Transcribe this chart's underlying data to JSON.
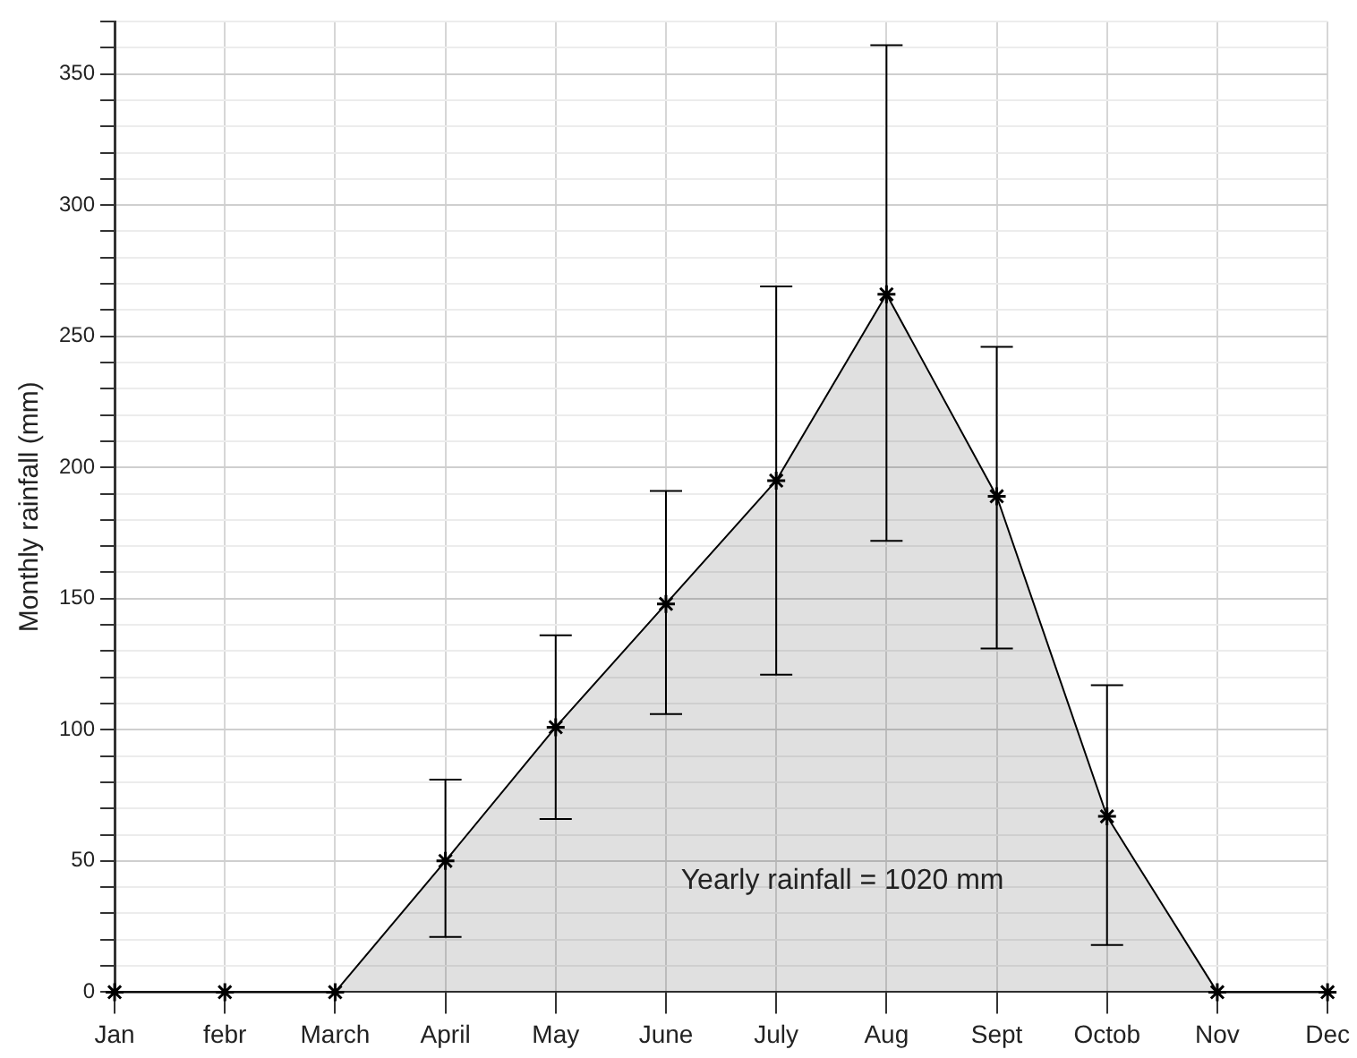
{
  "chart_data": {
    "type": "area",
    "ylabel": "Monthly rainfall (mm)",
    "categories": [
      "Jan",
      "febr",
      "March",
      "April",
      "May",
      "June",
      "July",
      "Aug",
      "Sept",
      "Octob",
      "Nov",
      "Dec"
    ],
    "series": [
      {
        "color": "#000000",
        "values": [
          0,
          0,
          0,
          50,
          101,
          148,
          195,
          266,
          189,
          67,
          0,
          0
        ],
        "errors": [
          null,
          null,
          null,
          [
            21,
            81
          ],
          [
            66,
            136
          ],
          [
            106,
            191
          ],
          [
            121,
            269
          ],
          [
            172,
            361
          ],
          [
            131,
            246
          ],
          [
            18,
            117
          ],
          null,
          null
        ]
      }
    ],
    "ylim": [
      0,
      370
    ],
    "yticks": [
      0,
      {
        "value": 10,
        "label": null
      },
      {
        "value": 20,
        "label": null
      },
      {
        "value": 30,
        "label": null
      },
      {
        "value": 40,
        "label": null
      },
      50,
      {
        "value": 60,
        "label": null
      },
      {
        "value": 70,
        "label": null
      },
      {
        "value": 80,
        "label": null
      },
      {
        "value": 90,
        "label": null
      },
      100,
      {
        "value": 110,
        "label": null
      },
      {
        "value": 120,
        "label": null
      },
      {
        "value": 130,
        "label": null
      },
      {
        "value": 140,
        "label": null
      },
      150,
      {
        "value": 160,
        "label": null
      },
      {
        "value": 170,
        "label": null
      },
      {
        "value": 180,
        "label": null
      },
      {
        "value": 190,
        "label": null
      },
      200,
      {
        "value": 210,
        "label": null
      },
      {
        "value": 220,
        "label": null
      },
      {
        "value": 230,
        "label": null
      },
      {
        "value": 240,
        "label": null
      },
      250,
      {
        "value": 260,
        "label": null
      },
      {
        "value": 270,
        "label": null
      },
      {
        "value": 280,
        "label": null
      },
      {
        "value": 290,
        "label": null
      },
      300,
      {
        "value": 310,
        "label": null
      },
      {
        "value": 320,
        "label": null
      },
      {
        "value": 330,
        "label": null
      },
      {
        "value": 340,
        "label": null
      },
      350,
      {
        "value": 360,
        "label": null
      },
      {
        "value": 370,
        "label": null
      }
    ],
    "grid": true,
    "marker": "cross",
    "line_style": "solid",
    "legend": false,
    "annotations": [
      "Yearly rainfall = 1020 mm"
    ]
  }
}
